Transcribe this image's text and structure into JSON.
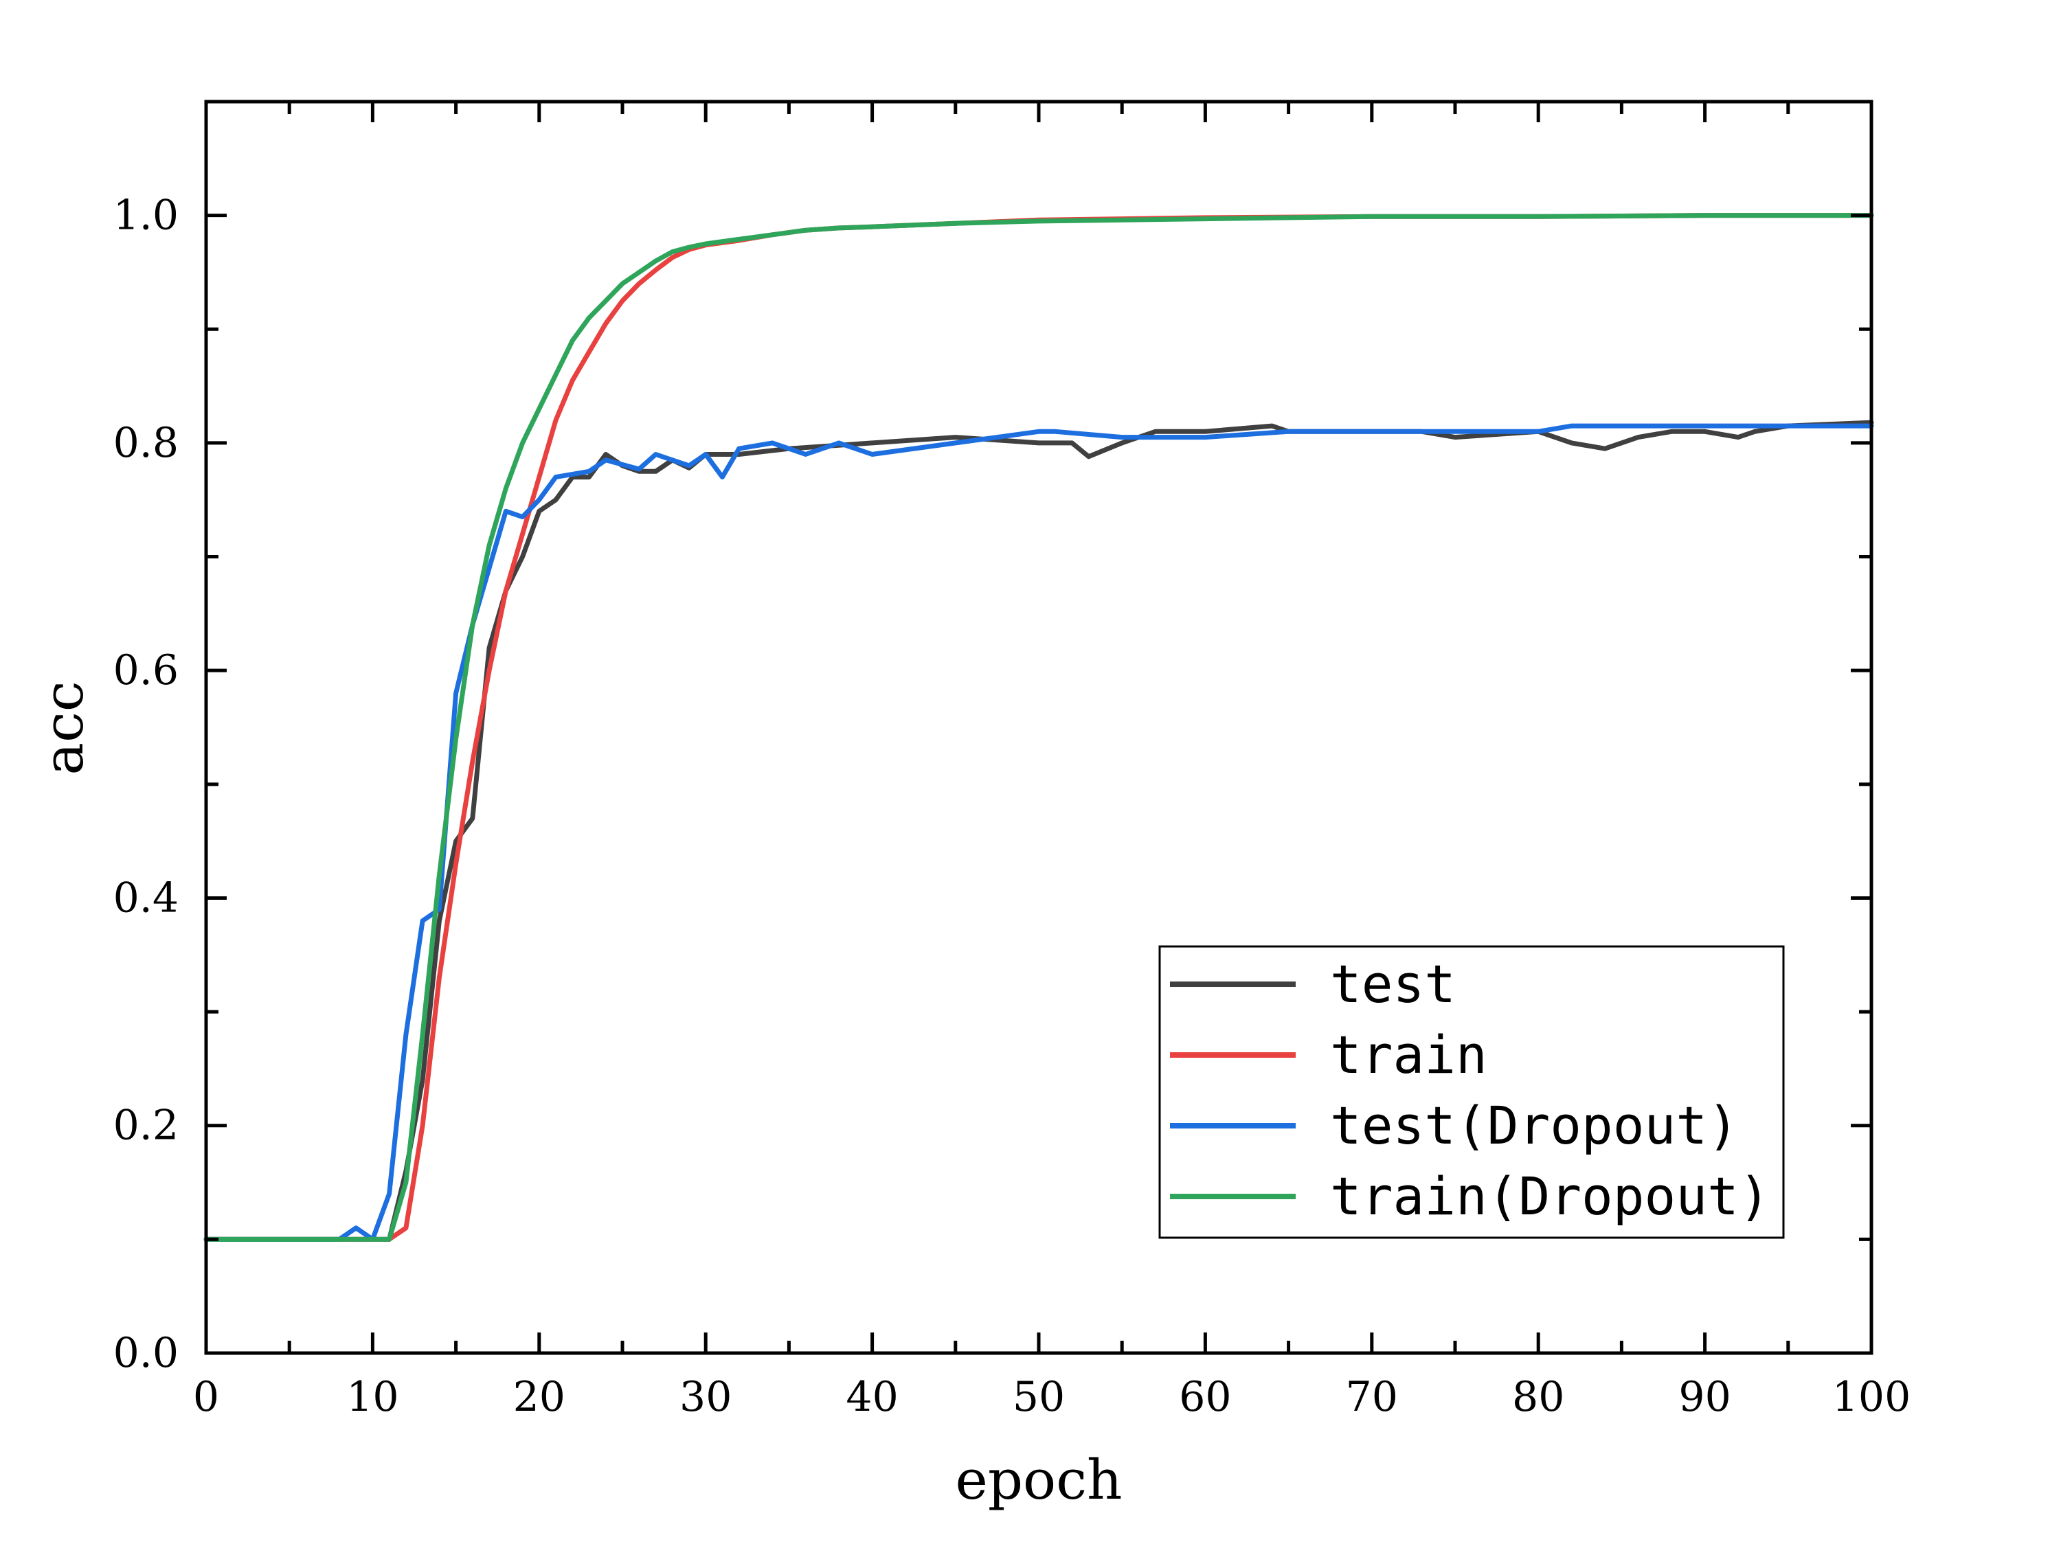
{
  "chart_data": {
    "type": "line",
    "title": "",
    "xlabel": "epoch",
    "ylabel": "acc",
    "xlim": [
      0,
      100
    ],
    "ylim": [
      0.0,
      1.1
    ],
    "xticks": [
      "0",
      "10",
      "20",
      "30",
      "40",
      "50",
      "60",
      "70",
      "80",
      "90",
      "100"
    ],
    "yticks": [
      "0.0",
      "0.2",
      "0.4",
      "0.6",
      "0.8",
      "1.0"
    ],
    "grid": false,
    "legend_position": "bottom-right",
    "series": [
      {
        "name": "test",
        "color": "#404040",
        "x": [
          0,
          5,
          10,
          11,
          12,
          13,
          14,
          15,
          16,
          17,
          18,
          19,
          20,
          21,
          22,
          23,
          24,
          25,
          26,
          27,
          28,
          29,
          30,
          32,
          35,
          40,
          45,
          50,
          52,
          53,
          55,
          57,
          60,
          64,
          65,
          70,
          73,
          75,
          80,
          82,
          84,
          86,
          88,
          90,
          92,
          93,
          95,
          100
        ],
        "y": [
          0.1,
          0.1,
          0.1,
          0.1,
          0.16,
          0.24,
          0.38,
          0.45,
          0.47,
          0.62,
          0.67,
          0.7,
          0.74,
          0.75,
          0.77,
          0.77,
          0.79,
          0.78,
          0.775,
          0.775,
          0.785,
          0.778,
          0.79,
          0.79,
          0.795,
          0.8,
          0.805,
          0.8,
          0.8,
          0.788,
          0.8,
          0.81,
          0.81,
          0.815,
          0.81,
          0.81,
          0.81,
          0.805,
          0.81,
          0.8,
          0.795,
          0.805,
          0.81,
          0.81,
          0.805,
          0.81,
          0.815,
          0.818
        ]
      },
      {
        "name": "train",
        "color": "#e8413f",
        "x": [
          0,
          5,
          10,
          11,
          12,
          13,
          14,
          15,
          16,
          17,
          18,
          19,
          20,
          21,
          22,
          23,
          24,
          25,
          26,
          27,
          28,
          29,
          30,
          32,
          34,
          36,
          38,
          40,
          45,
          50,
          60,
          70,
          80,
          90,
          100
        ],
        "y": [
          0.1,
          0.1,
          0.1,
          0.1,
          0.11,
          0.2,
          0.33,
          0.43,
          0.52,
          0.6,
          0.67,
          0.72,
          0.77,
          0.82,
          0.855,
          0.88,
          0.905,
          0.925,
          0.94,
          0.952,
          0.963,
          0.97,
          0.974,
          0.978,
          0.983,
          0.987,
          0.989,
          0.99,
          0.993,
          0.996,
          0.998,
          0.999,
          0.999,
          1.0,
          1.0
        ]
      },
      {
        "name": "test(Dropout)",
        "color": "#1d6fe0",
        "x": [
          0,
          5,
          8,
          9,
          10,
          11,
          12,
          13,
          14,
          15,
          16,
          17,
          18,
          19,
          20,
          21,
          23,
          24,
          26,
          27,
          28,
          29,
          30,
          31,
          32,
          34,
          36,
          38,
          40,
          45,
          50,
          51,
          55,
          60,
          65,
          70,
          75,
          80,
          82,
          85,
          90,
          95,
          100
        ],
        "y": [
          0.1,
          0.1,
          0.1,
          0.11,
          0.1,
          0.14,
          0.28,
          0.38,
          0.39,
          0.58,
          0.64,
          0.69,
          0.74,
          0.735,
          0.75,
          0.77,
          0.775,
          0.785,
          0.777,
          0.79,
          0.785,
          0.78,
          0.79,
          0.77,
          0.795,
          0.8,
          0.79,
          0.8,
          0.79,
          0.8,
          0.81,
          0.81,
          0.805,
          0.805,
          0.81,
          0.81,
          0.81,
          0.81,
          0.815,
          0.815,
          0.815,
          0.815,
          0.815
        ]
      },
      {
        "name": "train(Dropout)",
        "color": "#2ea55a",
        "x": [
          0,
          5,
          10,
          11,
          12,
          13,
          14,
          15,
          16,
          17,
          18,
          19,
          20,
          21,
          22,
          23,
          24,
          25,
          26,
          27,
          28,
          29,
          30,
          32,
          34,
          36,
          38,
          40,
          45,
          50,
          60,
          70,
          80,
          90,
          100
        ],
        "y": [
          0.1,
          0.1,
          0.1,
          0.1,
          0.15,
          0.28,
          0.42,
          0.54,
          0.64,
          0.71,
          0.76,
          0.8,
          0.83,
          0.86,
          0.89,
          0.91,
          0.925,
          0.94,
          0.95,
          0.96,
          0.968,
          0.972,
          0.975,
          0.979,
          0.983,
          0.987,
          0.989,
          0.99,
          0.993,
          0.995,
          0.997,
          0.999,
          0.999,
          1.0,
          1.0
        ]
      }
    ]
  }
}
